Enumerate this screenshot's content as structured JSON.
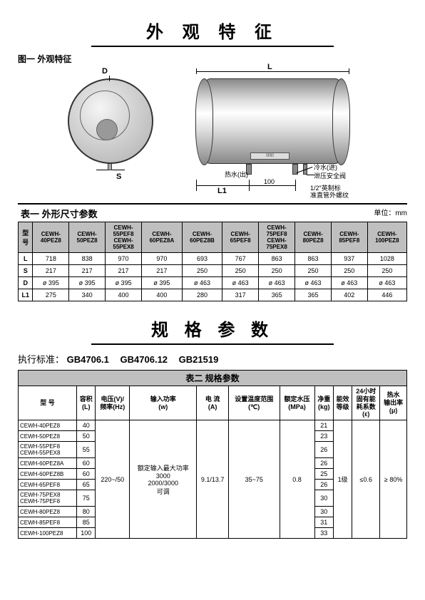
{
  "section1": {
    "title": "外 观 特 征",
    "figLabel": "图一 外观特征",
    "dims": {
      "D": "D",
      "S": "S",
      "L": "L",
      "L1": "L1",
      "gap": "100"
    },
    "labels": {
      "hotWater": "热水(出)",
      "coldWater": "冷水(进)",
      "safetyValve": "泄压安全阀",
      "thread": "1/2″英制标\n准直管外螺纹"
    }
  },
  "table1": {
    "title": "表一 外形尺寸参数",
    "unit": "单位：mm",
    "headModel": "型 号",
    "cols": [
      "CEWH-40PEZ8",
      "CEWH-50PEZ8",
      "CEWH-55PEF8\nCEWH-55PEX8",
      "CEWH-60PEZ8A",
      "CEWH-60PEZ8B",
      "CEWH-65PEF8",
      "CEWH-75PEF8\nCEWH-75PEX8",
      "CEWH-80PEZ8",
      "CEWH-85PEF8",
      "CEWH-100PEZ8"
    ],
    "rows": [
      {
        "k": "L",
        "v": [
          "718",
          "838",
          "970",
          "970",
          "693",
          "767",
          "863",
          "863",
          "937",
          "1028"
        ]
      },
      {
        "k": "S",
        "v": [
          "217",
          "217",
          "217",
          "217",
          "250",
          "250",
          "250",
          "250",
          "250",
          "250"
        ]
      },
      {
        "k": "D",
        "v": [
          "ø 395",
          "ø 395",
          "ø 395",
          "ø 395",
          "ø 463",
          "ø 463",
          "ø 463",
          "ø 463",
          "ø 463",
          "ø 463"
        ]
      },
      {
        "k": "L1",
        "v": [
          "275",
          "340",
          "400",
          "400",
          "280",
          "317",
          "365",
          "365",
          "402",
          "446"
        ]
      }
    ]
  },
  "section2": {
    "title": "规 格 参 数",
    "standardsLabel": "执行标准：",
    "standards": [
      "GB4706.1",
      "GB4706.12",
      "GB21519"
    ]
  },
  "table2": {
    "title": "表二 规格参数",
    "headers": [
      "型 号",
      "容积\n(L)",
      "电压(V)/\n频率(Hz)",
      "输入功率\n(w)",
      "电 流\n(A)",
      "设置温度范围\n(℃)",
      "额定水压\n(MPa)",
      "净重\n(kg)",
      "能效\n等级",
      "24小时\n固有能\n耗系数\n(ε)",
      "热水\n输出率\n(μ)"
    ],
    "models": [
      {
        "m": "CEWH-40PEZ8",
        "cap": "40",
        "wt": "21"
      },
      {
        "m": "CEWH-50PEZ8",
        "cap": "50",
        "wt": "23"
      },
      {
        "m": "CEWH-55PEF8\nCEWH-55PEX8",
        "cap": "55",
        "wt": "26"
      },
      {
        "m": "CEWH-60PEZ8A",
        "cap": "60",
        "wt": "26"
      },
      {
        "m": "CEWH-60PEZ8B",
        "cap": "60",
        "wt": "25"
      },
      {
        "m": "CEWH-65PEF8",
        "cap": "65",
        "wt": "26"
      },
      {
        "m": "CEWH-75PEX8\nCEWH-75PEF8",
        "cap": "75",
        "wt": "30"
      },
      {
        "m": "CEWH-80PEZ8",
        "cap": "80",
        "wt": "30"
      },
      {
        "m": "CEWH-85PEF8",
        "cap": "85",
        "wt": "31"
      },
      {
        "m": "CEWH-100PEZ8",
        "cap": "100",
        "wt": "33"
      }
    ],
    "shared": {
      "voltage": "220~/50",
      "power": "额定输入最大功率\n3000\n2000/3000\n可调",
      "current": "9.1/13.7",
      "tempRange": "35~75",
      "pressure": "0.8",
      "effGrade": "1级",
      "coeff": "≤0.6",
      "output": "≥ 80%"
    }
  }
}
